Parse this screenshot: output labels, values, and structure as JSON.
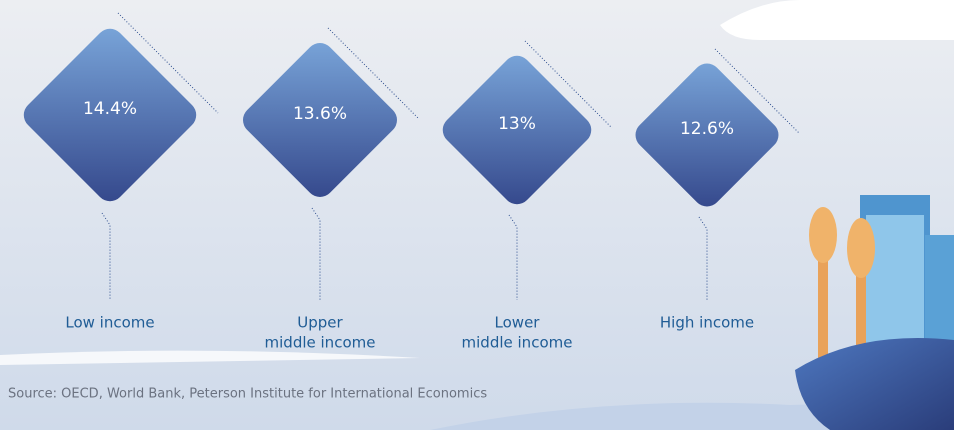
{
  "items": [
    {
      "value": "14.4%",
      "label": [
        "Low income"
      ]
    },
    {
      "value": "13.6%",
      "label": [
        "Upper",
        "middle income"
      ]
    },
    {
      "value": "13%",
      "label": [
        "Lower",
        "middle income"
      ]
    },
    {
      "value": "12.6%",
      "label": [
        "High income"
      ]
    }
  ],
  "source": "Source: OECD, World Bank, Peterson Institute for International Economics"
}
